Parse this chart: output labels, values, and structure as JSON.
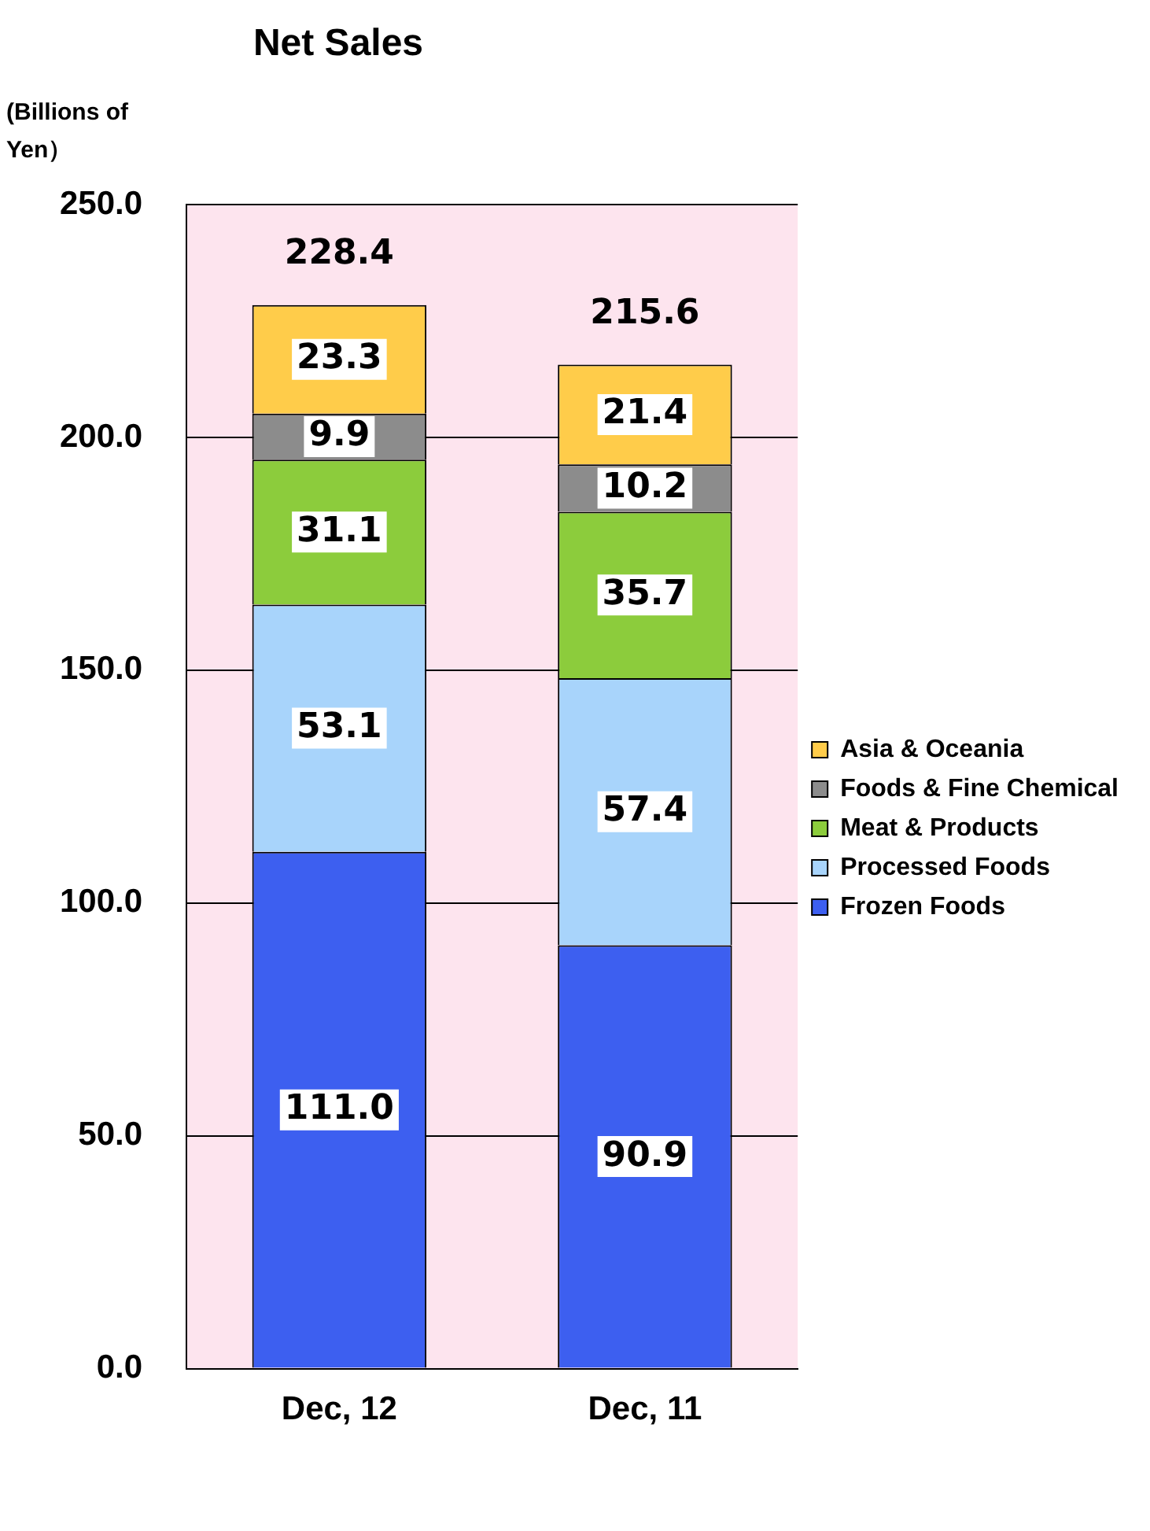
{
  "chart_data": {
    "type": "bar",
    "title": "Net Sales",
    "ylabel": "(Billions of Yen）",
    "stacked": true,
    "categories": [
      "Dec, 12",
      "Dec, 11"
    ],
    "series": [
      {
        "name": "Frozen Foods",
        "color": "#3d5ff0",
        "values": [
          111.0,
          90.9
        ],
        "value_labels": [
          "111.0",
          "90.9"
        ]
      },
      {
        "name": "Processed Foods",
        "color": "#a8d4fb",
        "values": [
          53.1,
          57.4
        ],
        "value_labels": [
          "53.1",
          "57.4"
        ]
      },
      {
        "name": "Meat & Products",
        "color": "#8ccc3c",
        "values": [
          31.1,
          35.7
        ],
        "value_labels": [
          "31.1",
          "35.7"
        ]
      },
      {
        "name": "Foods & Fine Chemical",
        "color": "#8c8c8c",
        "values": [
          9.9,
          10.2
        ],
        "value_labels": [
          "9.9",
          "10.2"
        ]
      },
      {
        "name": "Asia & Oceania",
        "color": "#ffcc4a",
        "values": [
          23.3,
          21.4
        ],
        "value_labels": [
          "23.3",
          "21.4"
        ]
      }
    ],
    "totals": [
      "228.4",
      "215.6"
    ],
    "ylim": [
      0,
      250
    ],
    "yticks": [
      {
        "value": 0,
        "label": "0.0"
      },
      {
        "value": 50,
        "label": "50.0"
      },
      {
        "value": 100,
        "label": "100.0"
      },
      {
        "value": 150,
        "label": "150.0"
      },
      {
        "value": 200,
        "label": "200.0"
      },
      {
        "value": 250,
        "label": "250.0"
      }
    ],
    "grid": "y",
    "legend": "right"
  }
}
